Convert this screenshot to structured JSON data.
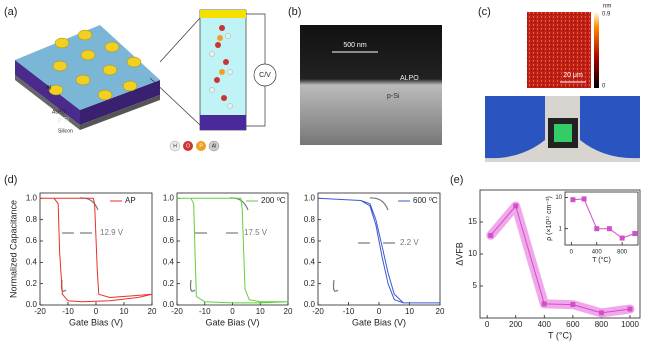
{
  "panels": [
    "(a)",
    "(b)",
    "(c)",
    "(d)",
    "(e)"
  ],
  "figure_a": {
    "labels": [
      "Al",
      "ALPO",
      "p-Si",
      "Silicon",
      "C/V"
    ],
    "atoms": [
      "H",
      "O",
      "P",
      "Al"
    ]
  },
  "figure_b": {
    "scale": "500 nm",
    "layers": [
      "ALPO",
      "p-Si"
    ]
  },
  "figure_c": {
    "unit": "nm",
    "colorbar": [
      0.9,
      0
    ],
    "scale": "20 μm"
  },
  "chart_data": [
    {
      "type": "line",
      "xlabel": "Gate Bias (V)",
      "ylabel": "Normalized Capacitance",
      "annotation": "12.9 V",
      "xlim": [
        -20,
        20
      ],
      "xticks": [
        -20,
        -10,
        0,
        10,
        20
      ],
      "ylim": [
        0,
        1.05
      ],
      "yticks": [
        {
          "value": 0,
          "label": "0.0"
        },
        {
          "value": 0.2,
          "label": "0.2"
        },
        {
          "value": 0.4,
          "label": "0.4"
        },
        {
          "value": 0.6,
          "label": "0.6"
        },
        {
          "value": 0.8,
          "label": "0.8"
        },
        {
          "value": 1,
          "label": "1.0"
        }
      ],
      "series": [
        {
          "name": "AP",
          "color": "#e8312a",
          "x": [
            -20,
            -10,
            -1,
            -0.5,
            0.5,
            1,
            5,
            15,
            20,
            15,
            5,
            -5,
            -10,
            -12,
            -13,
            -13.5,
            -15,
            -20
          ],
          "values": [
            1,
            1,
            1,
            0.95,
            0.3,
            0.1,
            0.07,
            0.09,
            0.1,
            0.07,
            0.04,
            0.03,
            0.04,
            0.1,
            0.5,
            0.95,
            1,
            1
          ]
        }
      ]
    },
    {
      "type": "line",
      "xlabel": "Gate Bias (V)",
      "annotation": "17.5 V",
      "xlim": [
        -20,
        20
      ],
      "xticks": [
        -20,
        -10,
        0,
        10,
        20
      ],
      "ylim": [
        0,
        1.05
      ],
      "yticks": [
        {
          "value": 0,
          "label": "0.0"
        },
        {
          "value": 0.2,
          "label": "0.2"
        },
        {
          "value": 0.4,
          "label": "0.4"
        },
        {
          "value": 0.6,
          "label": "0.6"
        },
        {
          "value": 0.8,
          "label": "0.8"
        },
        {
          "value": 1,
          "label": "1.0"
        }
      ],
      "series": [
        {
          "name": "200 ⁰C",
          "color": "#5fd13a",
          "x": [
            -20,
            -5,
            3,
            3.5,
            4.5,
            6,
            10,
            20,
            10,
            0,
            -10,
            -13,
            -13.5,
            -14,
            -15,
            -20
          ],
          "values": [
            1,
            1,
            1,
            0.9,
            0.15,
            0.05,
            0.03,
            0.03,
            0.02,
            0.02,
            0.03,
            0.08,
            0.5,
            0.95,
            1,
            1
          ]
        }
      ]
    },
    {
      "type": "line",
      "xlabel": "Gate Bias (V)",
      "annotation": "2.2 V",
      "xlim": [
        -20,
        20
      ],
      "xticks": [
        -20,
        -10,
        0,
        10,
        20
      ],
      "ylim": [
        0,
        1.05
      ],
      "yticks": [
        {
          "value": 0,
          "label": "0.0"
        },
        {
          "value": 0.2,
          "label": "0.2"
        },
        {
          "value": 0.4,
          "label": "0.4"
        },
        {
          "value": 0.6,
          "label": "0.6"
        },
        {
          "value": 0.8,
          "label": "0.8"
        },
        {
          "value": 1,
          "label": "1.0"
        }
      ],
      "series": [
        {
          "name": "600 ⁰C",
          "color": "#3b57d6",
          "x": [
            -20,
            -6,
            -3,
            -1,
            1,
            3,
            5,
            8,
            20,
            8,
            5,
            3,
            1,
            -1,
            -3,
            -6,
            -20
          ],
          "values": [
            1,
            0.98,
            0.93,
            0.75,
            0.45,
            0.2,
            0.05,
            0.02,
            0.02,
            0.02,
            0.1,
            0.3,
            0.55,
            0.8,
            0.95,
            0.98,
            1
          ]
        }
      ]
    },
    {
      "type": "line",
      "xlabel": "T (°C)",
      "ylabel": "ΔVFB",
      "color": "#d24fc9",
      "band_color": "#f0a8ea",
      "xlim": [
        -50,
        1070
      ],
      "xticks": [
        0,
        200,
        400,
        600,
        800,
        1000
      ],
      "ylim": [
        0,
        20
      ],
      "yticks": [
        5,
        10,
        15
      ],
      "x": [
        25,
        200,
        400,
        600,
        800,
        1000
      ],
      "values": [
        12.9,
        17.5,
        2.2,
        2.1,
        0.8,
        1.4
      ]
    },
    {
      "type": "line",
      "xlabel": "T (°C)",
      "ylabel": "ρ (×10¹⁷ cm⁻³)",
      "color": "#d24fc9",
      "log": true,
      "xlim": [
        -100,
        1050
      ],
      "xticks": [
        0,
        400,
        800
      ],
      "ylim": [
        0.3,
        15
      ],
      "yticks": [
        1,
        10
      ],
      "x": [
        25,
        200,
        400,
        600,
        800,
        1000
      ],
      "values": [
        8.5,
        9,
        1,
        1,
        0.5,
        0.7
      ]
    }
  ]
}
